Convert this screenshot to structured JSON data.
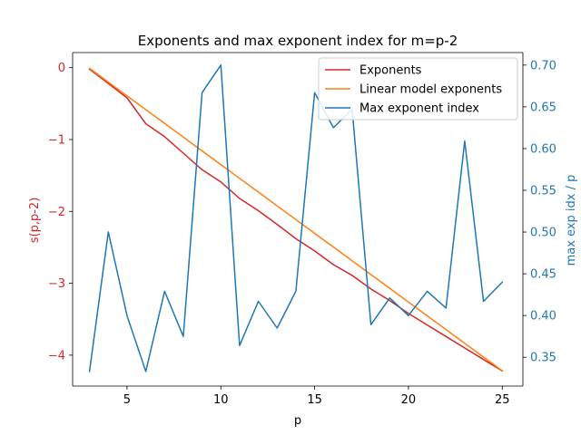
{
  "chart_data": {
    "type": "line",
    "title": "Exponents and max exponent index for m=p-2",
    "xlabel": "p",
    "ylabel_left": "s(p,p-2)",
    "ylabel_right": "max exp idx / p",
    "xlim": [
      2.1,
      26.1
    ],
    "ylim_left": [
      -4.43,
      0.21
    ],
    "ylim_right": [
      0.3155,
      0.715
    ],
    "x_ticks": [
      5,
      10,
      15,
      20,
      25
    ],
    "y_left_ticks": [
      0,
      -1,
      -2,
      -3,
      -4
    ],
    "y_right_ticks": [
      0.35,
      0.4,
      0.45,
      0.5,
      0.55,
      0.6,
      0.65,
      0.7
    ],
    "left_axis_color": "#d62728",
    "right_axis_color": "#1f77b4",
    "grid": false,
    "legend_position": "upper right",
    "x": [
      3,
      4,
      5,
      6,
      7,
      8,
      9,
      10,
      11,
      12,
      13,
      14,
      15,
      16,
      17,
      18,
      19,
      20,
      21,
      22,
      23,
      24,
      25
    ],
    "series": [
      {
        "name": "Exponents",
        "axis": "left",
        "color": "#d62728",
        "values": [
          -0.02,
          -0.22,
          -0.42,
          -0.78,
          -0.96,
          -1.19,
          -1.42,
          -1.59,
          -1.82,
          -1.99,
          -2.18,
          -2.38,
          -2.55,
          -2.74,
          -2.89,
          -3.08,
          -3.24,
          -3.42,
          -3.58,
          -3.74,
          -3.9,
          -4.06,
          -4.22
        ]
      },
      {
        "name": "Linear model exponents",
        "axis": "left",
        "color": "#ff7f0e",
        "values": [
          -0.01,
          -0.201,
          -0.393,
          -0.584,
          -0.775,
          -0.966,
          -1.158,
          -1.349,
          -1.54,
          -1.731,
          -1.923,
          -2.114,
          -2.305,
          -2.496,
          -2.688,
          -2.879,
          -3.07,
          -3.261,
          -3.453,
          -3.644,
          -3.835,
          -4.026,
          -4.218
        ]
      },
      {
        "name": "Max exponent index",
        "axis": "right",
        "color": "#1f77b4",
        "values": [
          0.333,
          0.5,
          0.4,
          0.333,
          0.429,
          0.375,
          0.667,
          0.7,
          0.364,
          0.417,
          0.385,
          0.429,
          0.667,
          0.625,
          0.647,
          0.389,
          0.421,
          0.4,
          0.429,
          0.409,
          0.609,
          0.417,
          0.44
        ]
      }
    ],
    "legend": [
      "Exponents",
      "Linear model exponents",
      "Max exponent index"
    ]
  }
}
